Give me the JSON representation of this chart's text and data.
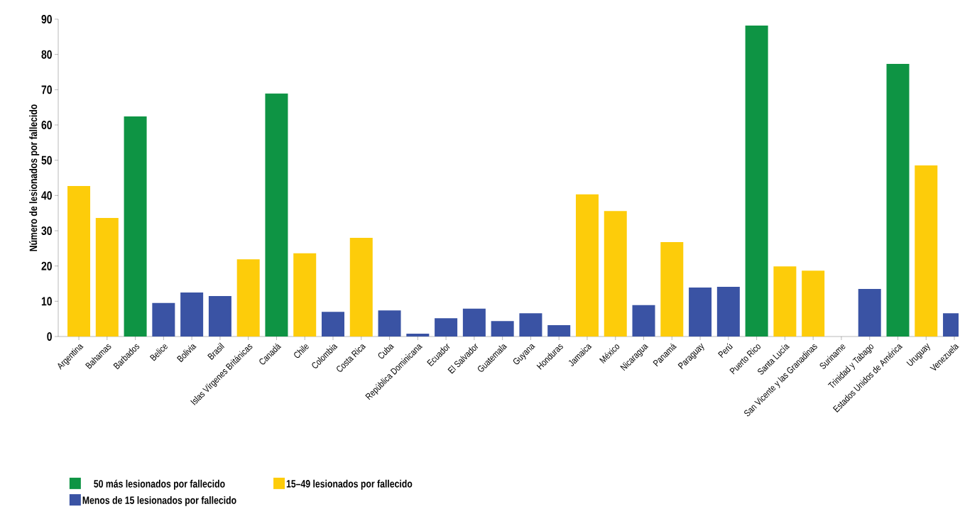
{
  "chart_data": {
    "type": "bar",
    "ylabel": "Número de lesionados por fallecido",
    "ylim": [
      0,
      90
    ],
    "yticks": [
      0,
      10,
      20,
      30,
      40,
      50,
      60,
      70,
      80,
      90
    ],
    "legend": "bottom left",
    "categories": [
      "Argentina",
      "Bahamas",
      "Barbados",
      "Belice",
      "Bolivia",
      "Brasil",
      "Islas Vírgenes Británicas",
      "Canadá",
      "Chile",
      "Colombia",
      "Costa Rica",
      "Cuba",
      "República Dominicana",
      "Ecuador",
      "El Salvador",
      "Guatemala",
      "Guyana",
      "Honduras",
      "Jamaica",
      "México",
      "Nicaragua",
      "Panamá",
      "Paraguay",
      "Perú",
      "Puerto Rico",
      "Santa Lucía",
      "San Vicente y las Granadinas",
      "Suriname",
      "Trinidad y Tabago",
      "Estados Unidos de América",
      "Uruguay",
      "Venezuela"
    ],
    "series": [
      {
        "name": "50 más lesionados por fallecido",
        "color": "#0e9444",
        "values": [
          null,
          null,
          62.4,
          null,
          null,
          null,
          null,
          68.9,
          null,
          null,
          null,
          null,
          null,
          null,
          null,
          null,
          null,
          null,
          null,
          null,
          null,
          null,
          null,
          null,
          88.2,
          null,
          null,
          null,
          null,
          77.3,
          null,
          null
        ]
      },
      {
        "name": "15–49 lesionados por fallecido",
        "color": "#fdcc0a",
        "values": [
          42.7,
          33.6,
          null,
          null,
          null,
          null,
          21.9,
          null,
          23.6,
          null,
          28.0,
          null,
          null,
          null,
          null,
          null,
          null,
          null,
          40.3,
          35.6,
          null,
          26.8,
          null,
          null,
          null,
          19.9,
          18.7,
          null,
          null,
          null,
          48.5,
          null
        ]
      },
      {
        "name": "Menos de 15 lesionados por fallecido",
        "color": "#3a53a4",
        "values": [
          null,
          null,
          null,
          9.5,
          12.5,
          11.5,
          null,
          null,
          null,
          7.0,
          null,
          7.4,
          0.8,
          5.2,
          7.9,
          4.4,
          6.6,
          3.2,
          null,
          null,
          8.9,
          null,
          13.9,
          14.1,
          null,
          null,
          null,
          null,
          13.5,
          null,
          null,
          6.6
        ]
      }
    ]
  }
}
